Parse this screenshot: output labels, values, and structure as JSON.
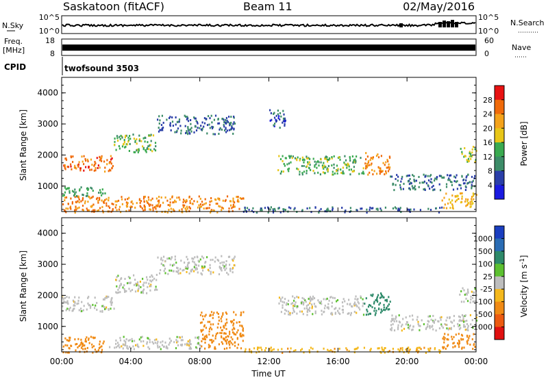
{
  "header": {
    "station": "Saskatoon (fitACF)",
    "beam": "Beam 11",
    "date": "02/May/2016"
  },
  "top_panels": {
    "nsky_label": "N.Sky",
    "nsky_ticks": [
      "10^5",
      "10^0"
    ],
    "nsearch_label": "N.Search",
    "nsearch_ticks": [
      "10^5",
      "10^0"
    ],
    "freq_label_1": "Freq.",
    "freq_label_2": "[MHz]",
    "freq_ticks": [
      "18",
      "8"
    ],
    "nave_label": "Nave",
    "nave_ticks": [
      "60",
      "0"
    ],
    "cpid_label": "CPID",
    "cpid_value": "twofsound 3503"
  },
  "chart_data": [
    {
      "type": "heatmap",
      "title": "Power",
      "ylabel": "Slant Range [km]",
      "ylim": [
        180,
        4500
      ],
      "y_ticks": [
        1000,
        2000,
        3000,
        4000
      ],
      "x_ticks": [
        "00:00",
        "04:00",
        "08:00",
        "12:00",
        "16:00",
        "20:00",
        "00:00"
      ],
      "xlim_hours": [
        0,
        24
      ],
      "colorbar": {
        "label": "Power [dB]",
        "ticks": [
          "28",
          "24",
          "20",
          "16",
          "12",
          "8",
          "4"
        ],
        "colors": [
          "#e81212",
          "#f06a0a",
          "#f4a21a",
          "#e8c618",
          "#3aaa50",
          "#3c8c68",
          "#2a3ea8",
          "#1a1ae0"
        ]
      },
      "regions": [
        {
          "t0": 0.0,
          "t1": 3.0,
          "r0": 1500,
          "r1": 2000,
          "level": 24
        },
        {
          "t0": 3.0,
          "t1": 5.5,
          "r0": 2100,
          "r1": 2700,
          "level": 12
        },
        {
          "t0": 5.5,
          "t1": 10.0,
          "r0": 2700,
          "r1": 3300,
          "level": 6
        },
        {
          "t0": 0.0,
          "t1": 10.5,
          "r0": 180,
          "r1": 700,
          "level": 22
        },
        {
          "t0": 0.0,
          "t1": 2.5,
          "r0": 700,
          "r1": 1000,
          "level": 10
        },
        {
          "t0": 12.0,
          "t1": 13.0,
          "r0": 2900,
          "r1": 3500,
          "level": 5
        },
        {
          "t0": 12.5,
          "t1": 17.5,
          "r0": 1400,
          "r1": 2000,
          "level": 12
        },
        {
          "t0": 17.5,
          "t1": 19.0,
          "r0": 1400,
          "r1": 2100,
          "level": 22
        },
        {
          "t0": 19.0,
          "t1": 24.0,
          "r0": 900,
          "r1": 1400,
          "level": 6
        },
        {
          "t0": 22.0,
          "t1": 24.0,
          "r0": 300,
          "r1": 800,
          "level": 18
        },
        {
          "t0": 23.0,
          "t1": 24.0,
          "r0": 1800,
          "r1": 2300,
          "level": 14
        },
        {
          "t0": 10.5,
          "t1": 22.0,
          "r0": 180,
          "r1": 350,
          "level": 6
        }
      ]
    },
    {
      "type": "heatmap",
      "title": "Velocity",
      "ylabel": "Slant Range [km]",
      "xlabel": "Time UT",
      "ylim": [
        180,
        4500
      ],
      "y_ticks": [
        1000,
        2000,
        3000,
        4000
      ],
      "x_ticks": [
        "00:00",
        "04:00",
        "08:00",
        "12:00",
        "16:00",
        "20:00",
        "00:00"
      ],
      "xlim_hours": [
        0,
        24
      ],
      "colorbar": {
        "label": "Velocity [m s^-1]",
        "ticks": [
          "1000",
          "500",
          "100",
          "25",
          "-25",
          "-100",
          "-500",
          "-1000"
        ],
        "colors": [
          "#1a3ec0",
          "#2a6cb4",
          "#2e8a6a",
          "#5cc030",
          "#bdbdbd",
          "#f4b81c",
          "#f08a14",
          "#ec5a10",
          "#e01010"
        ]
      },
      "regions": [
        {
          "t0": 0.0,
          "t1": 3.0,
          "r0": 1500,
          "r1": 2000,
          "level": 0
        },
        {
          "t0": 3.0,
          "t1": 5.5,
          "r0": 2100,
          "r1": 2700,
          "level": 0
        },
        {
          "t0": 5.5,
          "t1": 10.0,
          "r0": 2700,
          "r1": 3300,
          "level": 0
        },
        {
          "t0": 0.0,
          "t1": 2.5,
          "r0": 180,
          "r1": 700,
          "level": -150
        },
        {
          "t0": 2.5,
          "t1": 8.0,
          "r0": 300,
          "r1": 700,
          "level": 0
        },
        {
          "t0": 8.0,
          "t1": 10.5,
          "r0": 300,
          "r1": 1500,
          "level": -300
        },
        {
          "t0": 12.5,
          "t1": 17.5,
          "r0": 1400,
          "r1": 2000,
          "level": 0
        },
        {
          "t0": 17.5,
          "t1": 19.0,
          "r0": 1400,
          "r1": 2100,
          "level": 150
        },
        {
          "t0": 19.0,
          "t1": 24.0,
          "r0": 900,
          "r1": 1400,
          "level": 0
        },
        {
          "t0": 22.0,
          "t1": 24.0,
          "r0": 300,
          "r1": 800,
          "level": -200
        },
        {
          "t0": 23.0,
          "t1": 24.0,
          "r0": 1800,
          "r1": 2300,
          "level": 0
        },
        {
          "t0": 10.5,
          "t1": 22.0,
          "r0": 180,
          "r1": 350,
          "level": -80
        }
      ]
    }
  ]
}
